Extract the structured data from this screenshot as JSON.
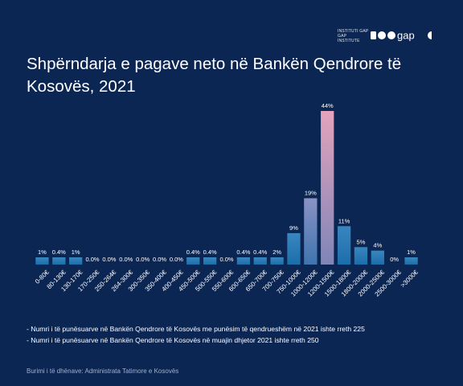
{
  "logo": {
    "small_text_1": "INSTITUTI GAP",
    "small_text_2": "GAP INSTITUTE",
    "wordmark": "gap"
  },
  "title": "Shpërndarja e pagave neto në Bankën Qendrore të Kosovës, 2021",
  "chart_data": {
    "type": "bar",
    "title": "Shpërndarja e pagave neto në Bankën Qendrore të Kosovës, 2021",
    "xlabel": "",
    "ylabel": "",
    "grid": false,
    "legend": "none",
    "categories": [
      "0-80€",
      "80-130€",
      "130-170€",
      "170-250€",
      "250-264€",
      "264-300€",
      "300-350€",
      "350-400€",
      "400-450€",
      "450-500€",
      "500-550€",
      "550-600€",
      "600-650€",
      "650-700€",
      "700-750€",
      "750-1000€",
      "1000-1200€",
      "1200-1500€",
      "1500-1800€",
      "1800-2000€",
      "2000-2500€",
      "2500-3000€",
      ">3000€"
    ],
    "values": [
      1,
      0.4,
      1,
      0.0,
      0.0,
      0.0,
      0.0,
      0.0,
      0.0,
      0.4,
      0.4,
      0.0,
      0.4,
      0.4,
      2,
      9,
      19,
      44,
      11,
      5,
      4,
      0,
      1
    ],
    "value_labels": [
      "1%",
      "0.4%",
      "1%",
      "0.0%",
      "0.0%",
      "0.0%",
      "0.0%",
      "0.0%",
      "0.0%",
      "0.4%",
      "0.4%",
      "0.0%",
      "0.4%",
      "0.4%",
      "2%",
      "9%",
      "19%",
      "44%",
      "11%",
      "5%",
      "4%",
      "0%",
      "1%"
    ],
    "ylim": [
      0,
      44
    ],
    "colors": {
      "bar_bottom": "#1b6eaa",
      "bar_top": "#3a86bf",
      "peak_top": "#e4a3bc",
      "peak_bottom": "#7f85b8"
    }
  },
  "notes": [
    "- Numri i të punësuarve në Bankën Qendrore të Kosovës me punësim të qendrueshëm në 2021 ishte rreth 225",
    "- Numri i të punësuarve në Bankën Qendrore të Kosovës në muajin dhjetor 2021 ishte rreth 250"
  ],
  "source": "Burimi i të dhënave: Administrata Tatimore e Kosovës"
}
